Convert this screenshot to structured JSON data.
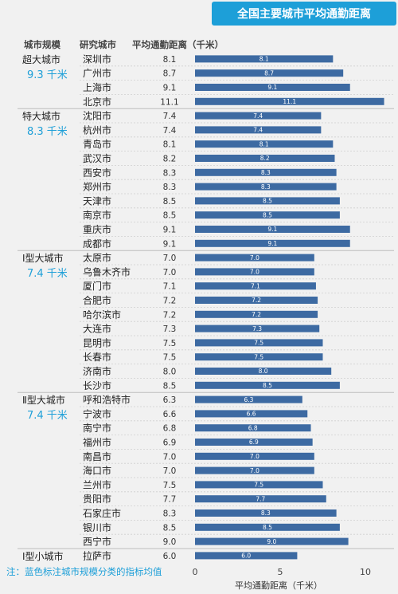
{
  "chart_data": {
    "type": "bar",
    "orientation": "horizontal",
    "title": "全国主要城市平均通勤距离",
    "column_headers": {
      "category": "城市规模",
      "city": "研究城市",
      "value": "平均通勤距离（千米）"
    },
    "xlabel": "平均通勤距离（千米）",
    "xlim": [
      0,
      11
    ],
    "x_ticks": [
      "0",
      "5",
      "10"
    ],
    "note": "注：蓝色标注城市规模分类的指标均值",
    "groups": [
      {
        "name": "超大城市",
        "avg": "9.3 千米",
        "cities": [
          "深圳市",
          "广州市",
          "上海市",
          "北京市"
        ],
        "values": [
          8.1,
          8.7,
          9.1,
          11.1
        ],
        "labels": [
          "8.1",
          "8.7",
          "9.1",
          "11.1"
        ]
      },
      {
        "name": "特大城市",
        "avg": "8.3 千米",
        "cities": [
          "沈阳市",
          "杭州市",
          "青岛市",
          "武汉市",
          "西安市",
          "郑州市",
          "天津市",
          "南京市",
          "重庆市",
          "成都市"
        ],
        "values": [
          7.4,
          7.4,
          8.1,
          8.2,
          8.3,
          8.3,
          8.5,
          8.5,
          9.1,
          9.1
        ],
        "labels": [
          "7.4",
          "7.4",
          "8.1",
          "8.2",
          "8.3",
          "8.3",
          "8.5",
          "8.5",
          "9.1",
          "9.1"
        ]
      },
      {
        "name": "Ⅰ型大城市",
        "avg": "7.4 千米",
        "cities": [
          "太原市",
          "乌鲁木齐市",
          "厦门市",
          "合肥市",
          "哈尔滨市",
          "大连市",
          "昆明市",
          "长春市",
          "济南市",
          "长沙市"
        ],
        "values": [
          7.0,
          7.0,
          7.1,
          7.2,
          7.2,
          7.3,
          7.5,
          7.5,
          8.0,
          8.5
        ],
        "labels": [
          "7.0",
          "7.0",
          "7.1",
          "7.2",
          "7.2",
          "7.3",
          "7.5",
          "7.5",
          "8.0",
          "8.5"
        ]
      },
      {
        "name": "Ⅱ型大城市",
        "avg": "7.4 千米",
        "cities": [
          "呼和浩特市",
          "宁波市",
          "南宁市",
          "福州市",
          "南昌市",
          "海口市",
          "兰州市",
          "贵阳市",
          "石家庄市",
          "银川市",
          "西宁市"
        ],
        "values": [
          6.3,
          6.6,
          6.8,
          6.9,
          7.0,
          7.0,
          7.5,
          7.7,
          8.3,
          8.5,
          9.0
        ],
        "labels": [
          "6.3",
          "6.6",
          "6.8",
          "6.9",
          "7.0",
          "7.0",
          "7.5",
          "7.7",
          "8.3",
          "8.5",
          "9.0"
        ]
      },
      {
        "name": "Ⅰ型小城市",
        "avg": "",
        "cities": [
          "拉萨市"
        ],
        "values": [
          6.0
        ],
        "labels": [
          "6.0"
        ]
      }
    ],
    "colors": {
      "bar": "#3d6aa2",
      "accent": "#1d9fd8"
    }
  }
}
